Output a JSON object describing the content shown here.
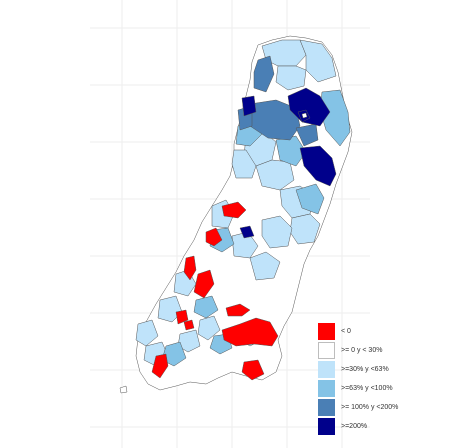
{
  "legend": {
    "items": [
      {
        "label": "< 0",
        "color": "#ff0000"
      },
      {
        "label": ">= 0 y < 30%",
        "color": "#ffffff"
      },
      {
        "label": ">=30% y <63%",
        "color": "#bfe3fa"
      },
      {
        "label": ">=63% y <100%",
        "color": "#84c3e6"
      },
      {
        "label": ">= 100% y <200%",
        "color": "#4a7fb5"
      },
      {
        "label": ">=200%",
        "color": "#00008b"
      }
    ]
  }
}
